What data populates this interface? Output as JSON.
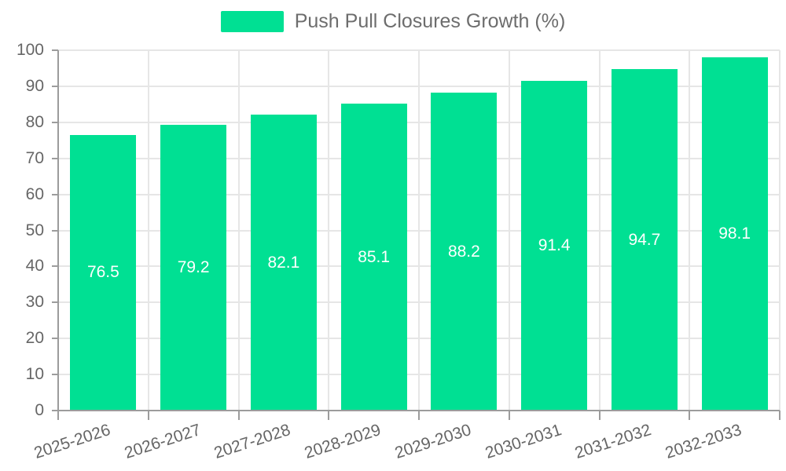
{
  "chart_data": {
    "type": "bar",
    "title": "",
    "legend": "Push Pull Closures Growth (%)",
    "legend_position": "top",
    "categories": [
      "2025-2026",
      "2026-2027",
      "2027-2028",
      "2028-2029",
      "2029-2030",
      "2030-2031",
      "2031-2032",
      "2032-2033"
    ],
    "values": [
      76.5,
      79.2,
      82.1,
      85.1,
      88.2,
      91.4,
      94.7,
      98.1
    ],
    "value_labels": [
      "76.5",
      "79.2",
      "82.1",
      "85.1",
      "88.2",
      "91.4",
      "94.7",
      "98.1"
    ],
    "xlabel": "",
    "ylabel": "",
    "ylim": [
      0,
      100
    ],
    "yticks": [
      0,
      10,
      20,
      30,
      40,
      50,
      60,
      70,
      80,
      90,
      100
    ],
    "grid": true,
    "colors": {
      "bar": "#00e093",
      "grid": "#e6e6e6",
      "axis": "#9c9c9c",
      "tick_text": "#666666",
      "legend_text": "#6d6d6d",
      "value_text": "#ffffff",
      "background": "#ffffff"
    }
  }
}
